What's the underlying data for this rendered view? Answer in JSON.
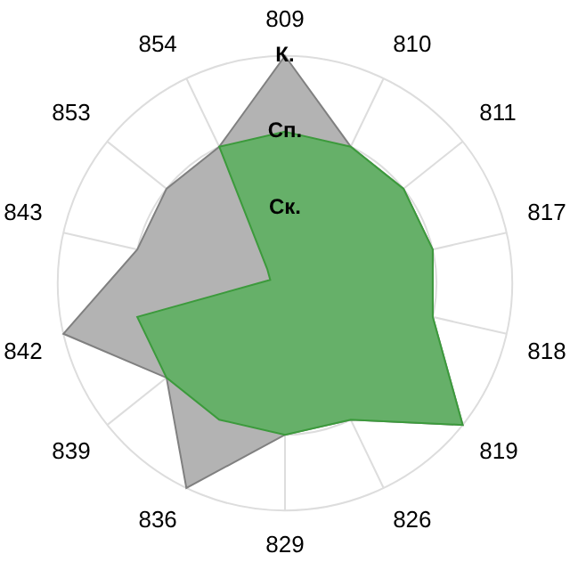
{
  "chart_data": {
    "type": "radar",
    "categories": [
      "809",
      "810",
      "811",
      "817",
      "818",
      "819",
      "826",
      "829",
      "836",
      "839",
      "842",
      "843",
      "853",
      "854"
    ],
    "series": [
      {
        "color": "#b3b3b3",
        "values": [
          3,
          2,
          2,
          2,
          2,
          3,
          2,
          2,
          3,
          2,
          3,
          2,
          2,
          2
        ]
      },
      {
        "color": "#66b069",
        "values": [
          2,
          2,
          2,
          2,
          2,
          3,
          2,
          2,
          2,
          2,
          2,
          0.2,
          0.3,
          2
        ]
      }
    ],
    "ylim": [
      0,
      3
    ],
    "yticks": [
      {
        "value": 1,
        "label": "Ск."
      },
      {
        "value": 2,
        "label": "Сп."
      },
      {
        "value": 3,
        "label": "К."
      }
    ],
    "grid": true,
    "legend": false,
    "marker": "none"
  }
}
